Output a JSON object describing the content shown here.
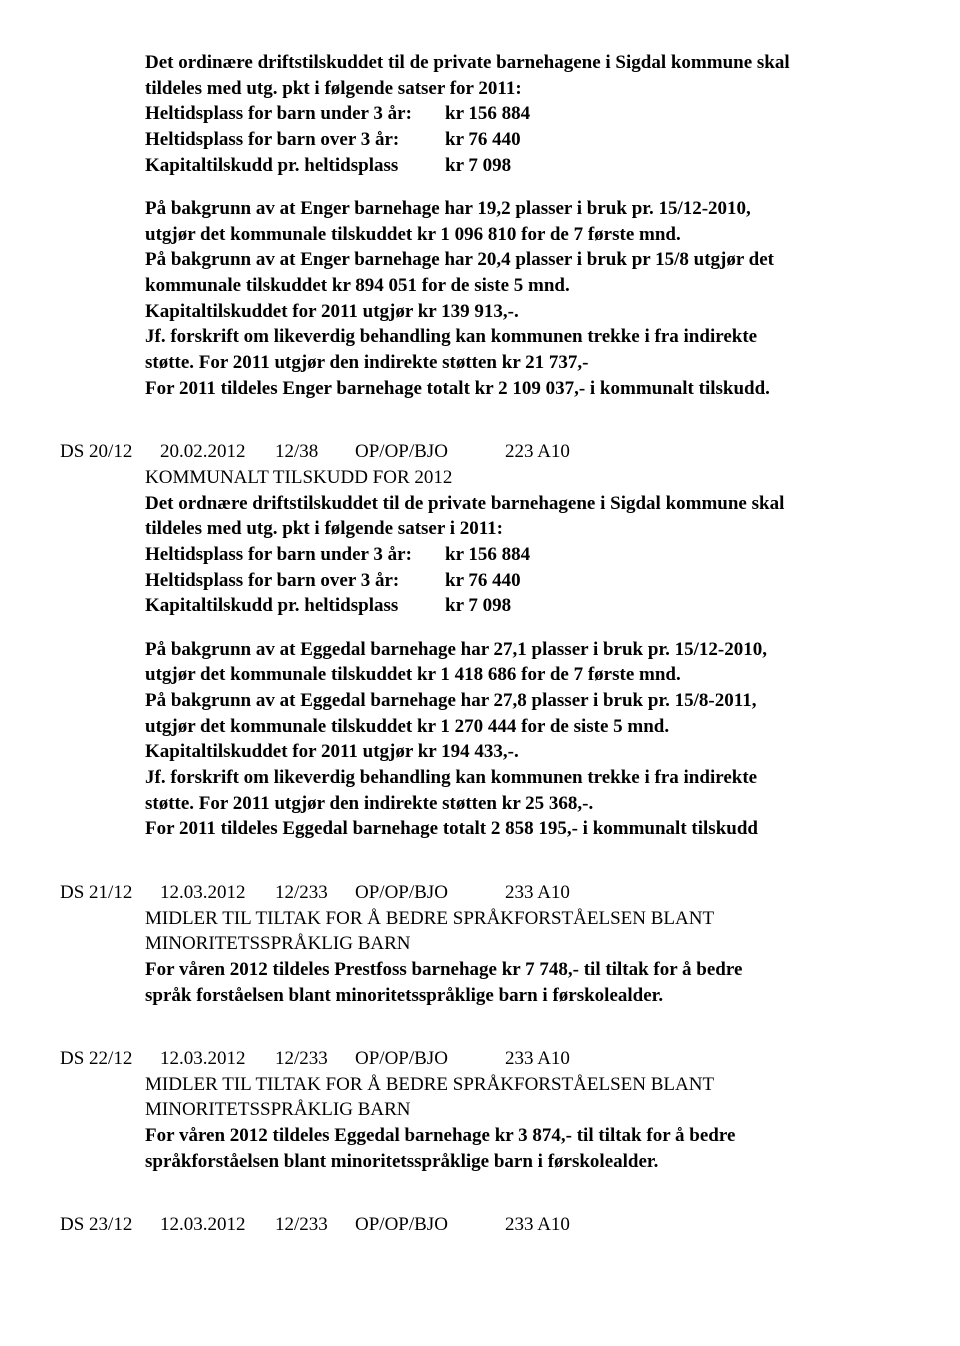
{
  "section1": {
    "p1_l1": "Det ordinære driftstilskuddet til de private barnehagene i Sigdal kommune skal",
    "p1_l2": "tildeles med utg. pkt i følgende satser for 2011:",
    "rate1_label": "Heltidsplass for barn under 3 år:",
    "rate1_value": "kr 156 884",
    "rate2_label": "Heltidsplass for barn over 3 år:",
    "rate2_value": "kr  76  440",
    "rate3_label": "Kapitaltilskudd pr. heltidsplass",
    "rate3_value": "kr    7 098",
    "p2_l1": "På bakgrunn av at Enger barnehage har 19,2 plasser i bruk pr. 15/12-2010,",
    "p2_l2": "utgjør det kommunale tilskuddet kr 1 096 810 for de 7 første mnd.",
    "p2_l3": "På bakgrunn av at Enger barnehage har 20,4 plasser i bruk pr 15/8 utgjør det",
    "p2_l4": "kommunale tilskuddet kr 894 051 for de siste 5 mnd.",
    "p2_l5": "Kapitaltilskuddet for 2011 utgjør kr 139 913,-.",
    "p2_l6a": "Jf. forskrift om likeverdig behandling kan kommunen trekke i fra indirekte",
    "p2_l6b": "støtte. For 2011 utgjør den indirekte støtten kr 21 737,-",
    "p2_l7": "For 2011 tildeles Enger barnehage totalt kr 2 109 037,- i kommunalt tilskudd."
  },
  "entry20": {
    "id": "DS  20/12",
    "date": "20.02.2012",
    "num": "12/38",
    "code": "OP/OP/BJO",
    "ref": "223 A10",
    "title": "KOMMUNALT TILSKUDD FOR 2012",
    "p1_l1": "Det ordnære driftstilskuddet til de private barnehagene i Sigdal kommune skal",
    "p1_l2": "tildeles med utg. pkt i følgende satser i 2011:",
    "rate1_label": "Heltidsplass for barn under 3 år:",
    "rate1_value": "kr 156 884",
    "rate2_label": "Heltidsplass for barn over 3 år:",
    "rate2_value": "kr  76  440",
    "rate3_label": "Kapitaltilskudd pr. heltidsplass",
    "rate3_value": "kr    7 098",
    "p2_l1": "På bakgrunn av at Eggedal barnehage har 27,1 plasser i bruk pr. 15/12-2010,",
    "p2_l2": "utgjør det kommunale tilskuddet kr 1 418 686 for de 7 første mnd.",
    "p2_l3": "På bakgrunn av at Eggedal barnehage har 27,8 plasser i bruk pr. 15/8-2011,",
    "p2_l4": "utgjør det kommunale tilskuddet kr 1 270 444 for de siste 5 mnd.",
    "p2_l5": "Kapitaltilskuddet for 2011 utgjør kr 194 433,-.",
    "p2_l6a": "Jf. forskrift om likeverdig behandling kan kommunen trekke i fra indirekte",
    "p2_l6b": "støtte. For 2011 utgjør den indirekte støtten kr 25 368,-.",
    "p2_l7": "For 2011 tildeles Eggedal barnehage totalt 2 858 195,- i kommunalt tilskudd"
  },
  "entry21": {
    "id": "DS  21/12",
    "date": "12.03.2012",
    "num": "12/233",
    "code": "OP/OP/BJO",
    "ref": "233 A10",
    "title_l1": "MIDLER TIL TILTAK FOR Å BEDRE SPRÅKFORSTÅELSEN BLANT",
    "title_l2": "MINORITETSSPRÅKLIG BARN",
    "p1_l1": "For våren 2012 tildeles Prestfoss barnehage kr 7 748,- til tiltak for å bedre",
    "p1_l2": "språk forståelsen blant minoritetsspråklige barn i førskolealder."
  },
  "entry22": {
    "id": "DS  22/12",
    "date": "12.03.2012",
    "num": "12/233",
    "code": "OP/OP/BJO",
    "ref": "233 A10",
    "title_l1": "MIDLER TIL TILTAK FOR Å BEDRE SPRÅKFORSTÅELSEN BLANT",
    "title_l2": "MINORITETSSPRÅKLIG BARN",
    "p1_l1": "For våren 2012 tildeles Eggedal barnehage kr 3 874,- til tiltak for å bedre",
    "p1_l2": "språkforståelsen blant minoritetsspråklige barn i førskolealder."
  },
  "entry23": {
    "id": "DS  23/12",
    "date": "12.03.2012",
    "num": "12/233",
    "code": "OP/OP/BJO",
    "ref": "233 A10"
  }
}
